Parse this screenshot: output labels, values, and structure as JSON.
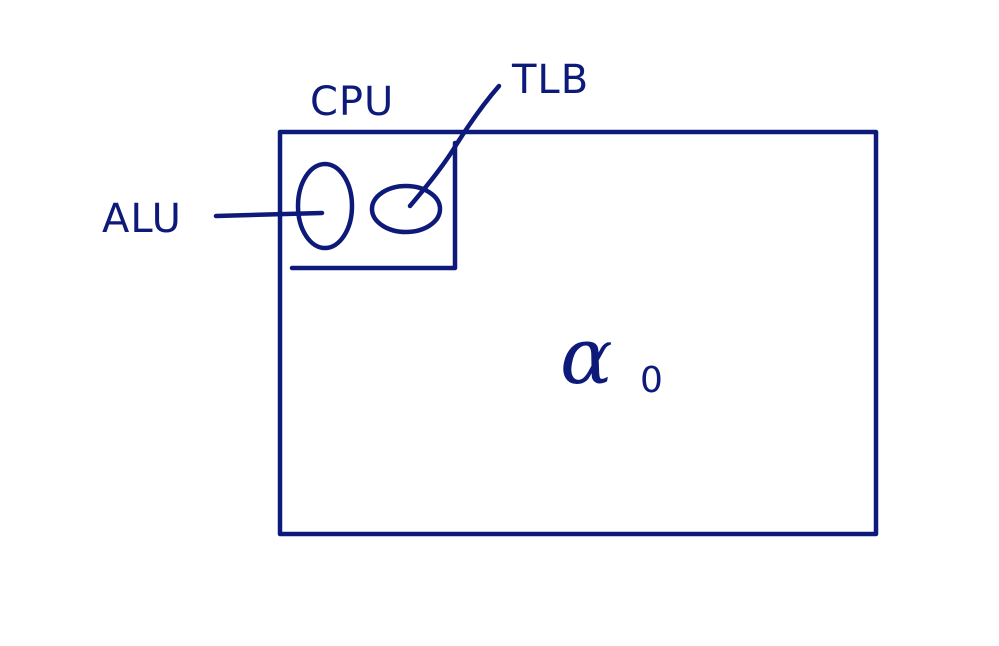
{
  "colors": {
    "ink": "#0d1a7a",
    "background": "#ffffff"
  },
  "labels": {
    "cpu": "CPU",
    "tlb": "TLB",
    "alu": "ALU",
    "symbol": "α",
    "symbol_subscript": "0"
  }
}
